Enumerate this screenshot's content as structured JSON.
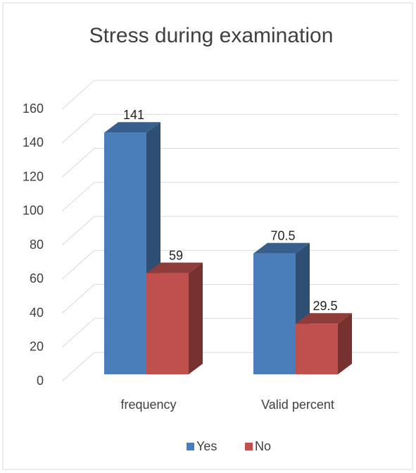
{
  "chart_data": {
    "type": "bar3d",
    "title": "Stress during examination",
    "categories": [
      "frequency",
      "Valid percent"
    ],
    "series": [
      {
        "name": "Yes",
        "color": "#4a7ebb",
        "values": [
          141,
          70.5
        ]
      },
      {
        "name": "No",
        "color": "#c0504d",
        "values": [
          59,
          29.5
        ]
      }
    ],
    "ylim": [
      0,
      160
    ],
    "yticks": [
      0,
      20,
      40,
      60,
      80,
      100,
      120,
      140,
      160
    ],
    "grid": true,
    "legend": "bottom"
  }
}
